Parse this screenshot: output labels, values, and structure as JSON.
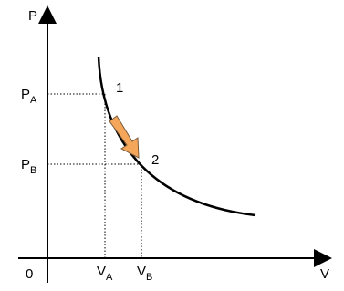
{
  "axes": {
    "y_label": "P",
    "x_label": "V",
    "origin": "0"
  },
  "pressure_labels": [
    {
      "symbol": "P",
      "subscript": "A"
    },
    {
      "symbol": "P",
      "subscript": "B"
    }
  ],
  "volume_labels": [
    {
      "symbol": "V",
      "subscript": "A"
    },
    {
      "symbol": "V",
      "subscript": "B"
    }
  ],
  "points": [
    {
      "label": "1"
    },
    {
      "label": "2"
    }
  ]
}
